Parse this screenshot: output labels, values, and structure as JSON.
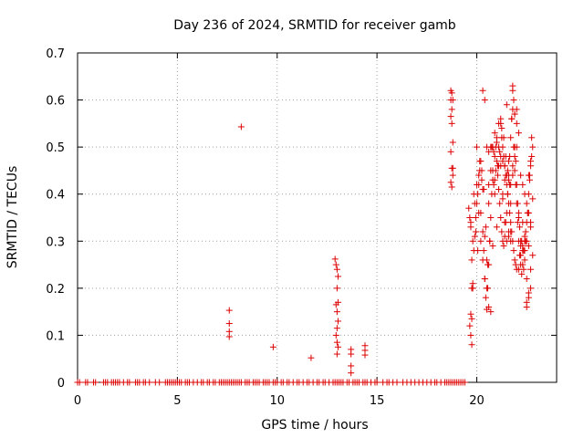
{
  "chart_data": {
    "type": "scatter",
    "title": "Day 236 of 2024, SRMTID for receiver gamb",
    "xlabel": "GPS time / hours",
    "ylabel": "SRMTID / TECUs",
    "xlim": [
      0,
      24
    ],
    "ylim": [
      0,
      0.7
    ],
    "xticks": [
      0,
      5,
      10,
      15,
      20
    ],
    "yticks": [
      0,
      0.1,
      0.2,
      0.3,
      0.4,
      0.5,
      0.6,
      0.7
    ],
    "xtick_labels": [
      "0",
      "5",
      "10",
      "15",
      "20"
    ],
    "ytick_labels": [
      "0",
      "0.1",
      "0.2",
      "0.3",
      "0.4",
      "0.5",
      "0.6",
      "0.7"
    ],
    "grid": true,
    "marker": "+",
    "color": "#dd0000",
    "series": [
      {
        "name": "SRMTID",
        "x": [
          0.0,
          0.1,
          0.4,
          0.5,
          0.8,
          0.9,
          1.3,
          1.4,
          1.5,
          1.7,
          1.8,
          1.9,
          2.0,
          2.1,
          2.3,
          2.5,
          2.6,
          2.9,
          3.0,
          3.1,
          3.3,
          3.4,
          3.6,
          3.9,
          4.1,
          4.4,
          4.5,
          4.6,
          4.7,
          4.8,
          4.9,
          5.0,
          5.1,
          5.2,
          5.4,
          5.5,
          5.6,
          5.8,
          6.0,
          6.2,
          6.3,
          6.5,
          6.6,
          6.8,
          6.9,
          7.1,
          7.2,
          7.3,
          7.4,
          7.5,
          7.6,
          7.7,
          7.8,
          7.9,
          8.0,
          8.1,
          8.2,
          8.4,
          8.5,
          8.6,
          8.8,
          8.9,
          9.0,
          9.1,
          9.3,
          9.4,
          9.5,
          9.6,
          9.8,
          9.9,
          10.0,
          10.2,
          10.3,
          10.5,
          10.6,
          10.8,
          11.0,
          11.1,
          11.3,
          11.5,
          11.6,
          11.8,
          12.0,
          12.1,
          12.3,
          12.4,
          12.6,
          12.8,
          12.9,
          13.0,
          13.1,
          13.2,
          13.3,
          13.5,
          13.6,
          13.8,
          13.9,
          14.0,
          14.1,
          14.3,
          14.4,
          14.5,
          14.7,
          14.9,
          15.0,
          15.3,
          15.5,
          15.6,
          15.8,
          16.0,
          16.3,
          16.5,
          16.7,
          16.9,
          17.1,
          17.3,
          17.5,
          17.7,
          17.9,
          18.0,
          18.2,
          18.4,
          18.5,
          18.6,
          18.7,
          18.8,
          18.9,
          19.0,
          19.1,
          19.2,
          19.3,
          19.4,
          7.6,
          7.6,
          7.6,
          7.6,
          8.2,
          9.8,
          11.7,
          12.9,
          12.95,
          13.0,
          13.05,
          13.0,
          13.05,
          12.95,
          13.0,
          13.05,
          13.0,
          12.95,
          13.0,
          13.05,
          13.0,
          13.7,
          13.7,
          13.7,
          13.7,
          14.4,
          14.4,
          14.4,
          18.7,
          18.75,
          18.8,
          18.7,
          18.75,
          18.8,
          18.7,
          18.75,
          18.8,
          18.7,
          18.75,
          18.8,
          18.7,
          18.75,
          19.6,
          19.65,
          19.7,
          19.75,
          19.8,
          19.7,
          19.75,
          19.65,
          19.7,
          19.75,
          19.8,
          19.85,
          19.9,
          19.95,
          20.0,
          20.05,
          20.1,
          20.15,
          20.2,
          20.25,
          20.3,
          20.35,
          20.4,
          20.45,
          20.5,
          20.55,
          20.6,
          20.65,
          20.7,
          20.75,
          20.8,
          20.85,
          20.9,
          20.95,
          21.0,
          21.05,
          21.1,
          21.15,
          21.2,
          21.25,
          21.3,
          21.35,
          21.4,
          21.45,
          21.5,
          21.55,
          21.6,
          21.65,
          21.7,
          21.75,
          21.8,
          21.85,
          21.9,
          21.95,
          22.0,
          22.05,
          22.1,
          22.15,
          22.2,
          22.25,
          22.3,
          22.35,
          22.4,
          22.45,
          22.5,
          22.55,
          22.6,
          22.65,
          22.7,
          22.75,
          22.8,
          19.7,
          19.8,
          19.9,
          20.0,
          20.1,
          20.2,
          20.3,
          20.4,
          20.5,
          20.6,
          20.7,
          20.8,
          20.9,
          21.0,
          21.1,
          21.2,
          21.3,
          21.4,
          21.5,
          21.6,
          21.7,
          21.8,
          21.9,
          22.0,
          22.1,
          22.2,
          22.3,
          22.4,
          22.5,
          22.6,
          22.7,
          22.8,
          19.75,
          19.85,
          19.95,
          20.05,
          20.15,
          20.25,
          20.35,
          20.45,
          20.55,
          20.65,
          20.75,
          20.85,
          20.95,
          21.05,
          21.15,
          21.25,
          21.35,
          21.45,
          21.55,
          21.65,
          21.75,
          21.85,
          21.95,
          22.05,
          22.15,
          22.25,
          22.35,
          22.45,
          22.55,
          22.65,
          22.75,
          20.0,
          20.2,
          20.4,
          20.6,
          20.8,
          21.0,
          21.2,
          21.4,
          21.6,
          21.8,
          22.0,
          22.2,
          22.4,
          22.6,
          22.8,
          20.1,
          20.3,
          20.5,
          20.7,
          20.9,
          21.1,
          21.3,
          21.5,
          21.7,
          21.9,
          22.1,
          22.3,
          22.5,
          22.7,
          21.0,
          21.1,
          21.2,
          21.3,
          21.4,
          21.5,
          21.6,
          21.7,
          21.8,
          21.9,
          22.0,
          22.1,
          22.2,
          22.3,
          22.4,
          22.5,
          22.6,
          22.7,
          20.3,
          20.4,
          20.5,
          20.6,
          21.8,
          21.9,
          22.4,
          22.5,
          22.6,
          22.7,
          20.6,
          20.7,
          20.8,
          20.9,
          21.6,
          21.7,
          22.0,
          22.1,
          22.2,
          22.3,
          22.4,
          22.5,
          22.6,
          22.7,
          21.2,
          21.25,
          21.3,
          21.35,
          21.4,
          21.45,
          21.5,
          21.55,
          21.6,
          21.65,
          21.7,
          21.75,
          21.8,
          21.85,
          21.9,
          21.95,
          22.0
        ],
        "y": [
          0,
          0,
          0,
          0,
          0,
          0,
          0,
          0,
          0,
          0,
          0,
          0,
          0,
          0,
          0,
          0,
          0,
          0,
          0,
          0,
          0,
          0,
          0,
          0,
          0,
          0,
          0,
          0,
          0,
          0,
          0,
          0,
          0,
          0,
          0,
          0,
          0,
          0,
          0,
          0,
          0,
          0,
          0,
          0,
          0,
          0,
          0,
          0,
          0,
          0,
          0,
          0,
          0,
          0,
          0,
          0,
          0,
          0,
          0,
          0,
          0,
          0,
          0,
          0,
          0,
          0,
          0,
          0,
          0,
          0,
          0,
          0,
          0,
          0,
          0,
          0,
          0,
          0,
          0,
          0,
          0,
          0,
          0,
          0,
          0,
          0,
          0,
          0,
          0,
          0,
          0,
          0,
          0,
          0,
          0,
          0,
          0,
          0,
          0,
          0,
          0,
          0,
          0,
          0,
          0,
          0,
          0,
          0,
          0,
          0,
          0,
          0,
          0,
          0,
          0,
          0,
          0,
          0,
          0,
          0,
          0,
          0,
          0,
          0,
          0,
          0,
          0,
          0,
          0,
          0,
          0,
          0,
          0.153,
          0.125,
          0.108,
          0.097,
          0.543,
          0.075,
          0.052,
          0.262,
          0.25,
          0.24,
          0.225,
          0.2,
          0.17,
          0.165,
          0.15,
          0.13,
          0.115,
          0.1,
          0.085,
          0.075,
          0.06,
          0.07,
          0.06,
          0.035,
          0.02,
          0.078,
          0.068,
          0.058,
          0.62,
          0.615,
          0.6,
          0.565,
          0.55,
          0.51,
          0.49,
          0.455,
          0.44,
          0.425,
          0.415,
          0.455,
          0.6,
          0.58,
          0.37,
          0.35,
          0.33,
          0.26,
          0.21,
          0.145,
          0.135,
          0.12,
          0.1,
          0.08,
          0.2,
          0.28,
          0.31,
          0.35,
          0.38,
          0.4,
          0.42,
          0.45,
          0.47,
          0.43,
          0.32,
          0.28,
          0.22,
          0.18,
          0.155,
          0.2,
          0.25,
          0.3,
          0.35,
          0.4,
          0.45,
          0.49,
          0.53,
          0.5,
          0.47,
          0.44,
          0.41,
          0.38,
          0.35,
          0.32,
          0.3,
          0.29,
          0.31,
          0.34,
          0.36,
          0.4,
          0.44,
          0.48,
          0.52,
          0.56,
          0.58,
          0.5,
          0.45,
          0.42,
          0.38,
          0.34,
          0.3,
          0.27,
          0.25,
          0.23,
          0.25,
          0.28,
          0.3,
          0.32,
          0.34,
          0.36,
          0.4,
          0.43,
          0.46,
          0.48,
          0.5,
          0.34,
          0.3,
          0.38,
          0.42,
          0.36,
          0.3,
          0.26,
          0.22,
          0.2,
          0.38,
          0.45,
          0.5,
          0.48,
          0.52,
          0.55,
          0.46,
          0.4,
          0.34,
          0.3,
          0.32,
          0.38,
          0.44,
          0.5,
          0.42,
          0.35,
          0.3,
          0.28,
          0.26,
          0.22,
          0.29,
          0.34,
          0.39,
          0.2,
          0.4,
          0.32,
          0.28,
          0.47,
          0.45,
          0.41,
          0.33,
          0.25,
          0.3,
          0.5,
          0.42,
          0.45,
          0.46,
          0.49,
          0.54,
          0.52,
          0.48,
          0.45,
          0.42,
          0.56,
          0.6,
          0.47,
          0.38,
          0.33,
          0.3,
          0.24,
          0.3,
          0.36,
          0.44,
          0.52,
          0.5,
          0.36,
          0.31,
          0.42,
          0.29,
          0.33,
          0.56,
          0.43,
          0.47,
          0.63,
          0.55,
          0.29,
          0.28,
          0.19,
          0.27,
          0.44,
          0.41,
          0.26,
          0.5,
          0.43,
          0.46,
          0.39,
          0.59,
          0.32,
          0.57,
          0.36,
          0.34,
          0.17,
          0.24,
          0.51,
          0.5,
          0.48,
          0.47,
          0.46,
          0.44,
          0.43,
          0.42,
          0.46,
          0.48,
          0.5,
          0.53,
          0.44,
          0.42,
          0.4,
          0.38,
          0.36,
          0.33,
          0.62,
          0.6,
          0.5,
          0.49,
          0.62,
          0.57,
          0.31,
          0.16,
          0.18,
          0.2,
          0.16,
          0.15,
          0.43,
          0.4,
          0.31,
          0.3,
          0.58,
          0.24,
          0.27,
          0.29,
          0.3,
          0.3,
          0.44,
          0.47,
          0.55,
          0.52,
          0.5,
          0.48,
          0.46,
          0.44,
          0.42,
          0.4,
          0.38,
          0.36,
          0.34,
          0.32,
          0.3,
          0.28,
          0.26,
          0.25,
          0.24
        ]
      }
    ]
  }
}
